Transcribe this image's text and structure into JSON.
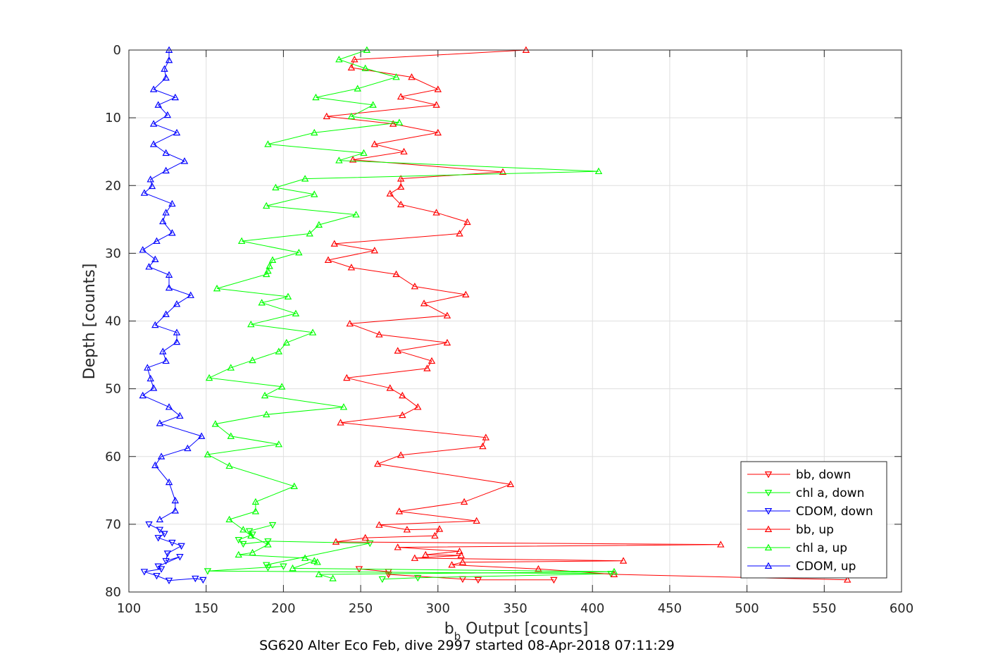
{
  "chart_data": {
    "type": "line",
    "xlabel": "b",
    "xlabel_sub": "b",
    "xlabel_rest": " Output [counts]",
    "ylabel": "Depth [counts]",
    "caption": "SG620 Alter Eco Feb, dive 2997 started 08-Apr-2018 07:11:29",
    "xlim": [
      100,
      600
    ],
    "ylim": [
      0,
      80
    ],
    "y_reversed": true,
    "grid": true,
    "legend_position": "bottom-right",
    "x_ticks": [
      "100",
      "150",
      "200",
      "250",
      "300",
      "350",
      "400",
      "450",
      "500",
      "550",
      "600"
    ],
    "y_ticks": [
      "0",
      "10",
      "20",
      "30",
      "40",
      "50",
      "60",
      "70",
      "80"
    ],
    "series": [
      {
        "name": "bb, down",
        "color": "#ff0000",
        "marker": "triangle-down",
        "points": [
          [
            249,
            76.6
          ],
          [
            268,
            77.0
          ],
          [
            268,
            77.4
          ],
          [
            316,
            78.1
          ],
          [
            326,
            78.2
          ],
          [
            375,
            78.2
          ]
        ]
      },
      {
        "name": "chl a, down",
        "color": "#00ff00",
        "marker": "triangle-down",
        "points": [
          [
            193,
            70.1
          ],
          [
            178,
            71.0
          ],
          [
            180,
            71.5
          ],
          [
            171,
            72.3
          ],
          [
            174,
            72.9
          ],
          [
            190,
            72.5
          ],
          [
            256,
            72.8
          ],
          [
            189,
            76.0
          ],
          [
            190,
            76.4
          ],
          [
            200,
            76.2
          ],
          [
            151,
            76.9
          ],
          [
            412,
            77.3
          ],
          [
            287,
            77.9
          ],
          [
            264,
            78.1
          ]
        ]
      },
      {
        "name": "CDOM, down",
        "color": "#0000ff",
        "marker": "triangle-down",
        "points": [
          [
            113,
            70.0
          ],
          [
            120,
            70.8
          ],
          [
            123,
            71.4
          ],
          [
            119,
            72.0
          ],
          [
            128,
            72.7
          ],
          [
            134,
            73.2
          ],
          [
            125,
            74.3
          ],
          [
            124,
            75.4
          ],
          [
            133,
            74.8
          ],
          [
            119,
            76.2
          ],
          [
            121,
            76.6
          ],
          [
            110,
            77.0
          ],
          [
            118,
            77.6
          ],
          [
            126,
            78.3
          ],
          [
            143,
            78.0
          ],
          [
            148,
            78.2
          ]
        ]
      },
      {
        "name": "bb, up",
        "color": "#ff0000",
        "marker": "triangle-up",
        "points": [
          [
            357,
            0.0
          ],
          [
            246,
            1.4
          ],
          [
            244,
            2.6
          ],
          [
            283,
            4.0
          ],
          [
            300,
            5.8
          ],
          [
            276,
            6.9
          ],
          [
            299,
            8.1
          ],
          [
            228,
            9.8
          ],
          [
            271,
            10.9
          ],
          [
            300,
            12.2
          ],
          [
            259,
            13.9
          ],
          [
            278,
            15.0
          ],
          [
            245,
            16.2
          ],
          [
            342,
            18.0
          ],
          [
            276,
            19.0
          ],
          [
            276,
            20.2
          ],
          [
            269,
            21.2
          ],
          [
            276,
            22.8
          ],
          [
            299,
            24.0
          ],
          [
            319,
            25.4
          ],
          [
            314,
            27.1
          ],
          [
            233,
            28.6
          ],
          [
            259,
            29.6
          ],
          [
            229,
            31.0
          ],
          [
            244,
            32.1
          ],
          [
            273,
            33.1
          ],
          [
            285,
            34.9
          ],
          [
            318,
            36.1
          ],
          [
            291,
            37.4
          ],
          [
            306,
            39.2
          ],
          [
            243,
            40.4
          ],
          [
            262,
            42.0
          ],
          [
            306,
            43.2
          ],
          [
            274,
            44.4
          ],
          [
            296,
            45.9
          ],
          [
            293,
            47.0
          ],
          [
            241,
            48.4
          ],
          [
            269,
            49.9
          ],
          [
            277,
            51.0
          ],
          [
            287,
            52.7
          ],
          [
            277,
            53.9
          ],
          [
            237,
            55.0
          ],
          [
            331,
            57.2
          ],
          [
            329,
            58.5
          ],
          [
            276,
            59.8
          ],
          [
            261,
            61.1
          ],
          [
            347,
            64.1
          ],
          [
            317,
            66.7
          ],
          [
            275,
            68.1
          ],
          [
            325,
            69.5
          ],
          [
            262,
            70.1
          ],
          [
            280,
            70.8
          ],
          [
            301,
            70.7
          ],
          [
            298,
            71.7
          ],
          [
            253,
            72.0
          ],
          [
            234,
            72.6
          ],
          [
            483,
            73.0
          ],
          [
            274,
            73.4
          ],
          [
            314,
            74.0
          ],
          [
            292,
            74.5
          ],
          [
            315,
            74.6
          ],
          [
            285,
            75.0
          ],
          [
            420,
            75.4
          ],
          [
            316,
            75.6
          ],
          [
            309,
            76.0
          ],
          [
            365,
            76.6
          ],
          [
            414,
            77.4
          ],
          [
            565,
            78.2
          ]
        ]
      },
      {
        "name": "chl a, up",
        "color": "#00ff00",
        "marker": "triangle-up",
        "points": [
          [
            254,
            0.0
          ],
          [
            236,
            1.4
          ],
          [
            253,
            2.7
          ],
          [
            273,
            4.0
          ],
          [
            248,
            5.7
          ],
          [
            221,
            7.0
          ],
          [
            258,
            8.1
          ],
          [
            244,
            9.8
          ],
          [
            275,
            10.7
          ],
          [
            220,
            12.2
          ],
          [
            190,
            13.9
          ],
          [
            252,
            15.2
          ],
          [
            236,
            16.3
          ],
          [
            404,
            17.9
          ],
          [
            214,
            19.0
          ],
          [
            195,
            20.3
          ],
          [
            220,
            21.3
          ],
          [
            189,
            23.0
          ],
          [
            247,
            24.3
          ],
          [
            223,
            25.8
          ],
          [
            217,
            27.1
          ],
          [
            173,
            28.2
          ],
          [
            210,
            29.9
          ],
          [
            193,
            31.0
          ],
          [
            191,
            31.9
          ],
          [
            190,
            32.6
          ],
          [
            189,
            33.1
          ],
          [
            157,
            35.2
          ],
          [
            203,
            36.4
          ],
          [
            186,
            37.3
          ],
          [
            208,
            38.9
          ],
          [
            179,
            40.5
          ],
          [
            219,
            41.7
          ],
          [
            202,
            43.2
          ],
          [
            197,
            44.5
          ],
          [
            180,
            45.8
          ],
          [
            166,
            46.9
          ],
          [
            152,
            48.4
          ],
          [
            199,
            49.7
          ],
          [
            188,
            51.0
          ],
          [
            239,
            52.7
          ],
          [
            189,
            53.8
          ],
          [
            156,
            55.2
          ],
          [
            166,
            57.0
          ],
          [
            197,
            58.2
          ],
          [
            151,
            59.7
          ],
          [
            165,
            61.4
          ],
          [
            207,
            64.4
          ],
          [
            182,
            66.7
          ],
          [
            182,
            68.1
          ],
          [
            165,
            69.3
          ],
          [
            174,
            70.8
          ],
          [
            179,
            71.7
          ],
          [
            190,
            73.0
          ],
          [
            180,
            74.2
          ],
          [
            171,
            74.5
          ],
          [
            214,
            75.0
          ],
          [
            222,
            75.6
          ],
          [
            220,
            75.4
          ],
          [
            206,
            76.5
          ],
          [
            414,
            77.0
          ],
          [
            223,
            77.4
          ],
          [
            232,
            78.0
          ]
        ]
      },
      {
        "name": "CDOM, up",
        "color": "#0000ff",
        "marker": "triangle-up",
        "points": [
          [
            126,
            0.0
          ],
          [
            126,
            1.5
          ],
          [
            123,
            2.8
          ],
          [
            124,
            4.1
          ],
          [
            116,
            5.8
          ],
          [
            130,
            7.0
          ],
          [
            119,
            8.1
          ],
          [
            125,
            9.6
          ],
          [
            116,
            10.9
          ],
          [
            131,
            12.2
          ],
          [
            116,
            13.9
          ],
          [
            124,
            15.2
          ],
          [
            136,
            16.4
          ],
          [
            124,
            17.8
          ],
          [
            114,
            19.1
          ],
          [
            115,
            20.1
          ],
          [
            110,
            21.1
          ],
          [
            128,
            22.7
          ],
          [
            124,
            24.0
          ],
          [
            122,
            25.3
          ],
          [
            128,
            27.0
          ],
          [
            118,
            28.2
          ],
          [
            109,
            29.5
          ],
          [
            117,
            30.9
          ],
          [
            113,
            32.0
          ],
          [
            126,
            33.2
          ],
          [
            126,
            35.1
          ],
          [
            140,
            36.2
          ],
          [
            131,
            37.5
          ],
          [
            124,
            39.0
          ],
          [
            117,
            40.6
          ],
          [
            131,
            41.7
          ],
          [
            131,
            43.1
          ],
          [
            122,
            44.5
          ],
          [
            124,
            45.9
          ],
          [
            112,
            46.9
          ],
          [
            114,
            48.5
          ],
          [
            116,
            49.9
          ],
          [
            109,
            51.0
          ],
          [
            126,
            52.7
          ],
          [
            133,
            54.0
          ],
          [
            120,
            55.1
          ],
          [
            147,
            57.0
          ],
          [
            138,
            58.8
          ],
          [
            121,
            60.0
          ],
          [
            117,
            61.3
          ],
          [
            126,
            63.8
          ],
          [
            130,
            66.5
          ],
          [
            130,
            68.0
          ],
          [
            120,
            69.3
          ]
        ]
      }
    ]
  }
}
